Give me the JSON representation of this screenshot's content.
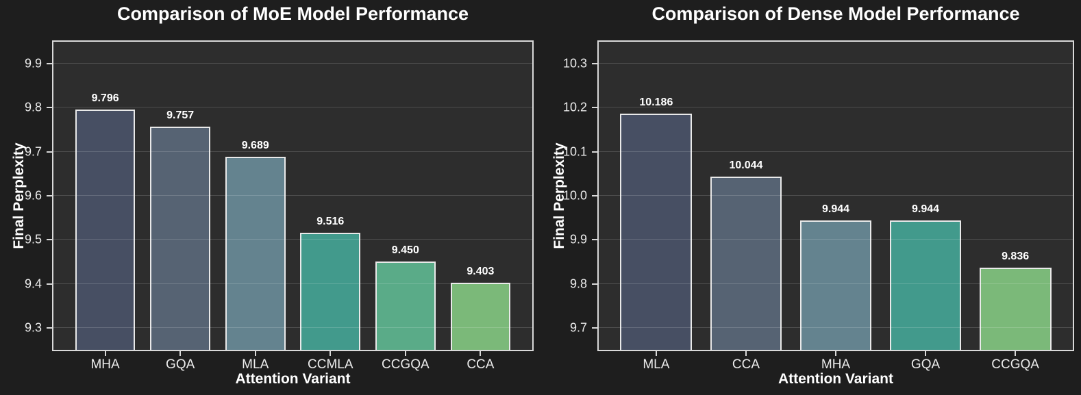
{
  "figure": {
    "background": "#1e1e1e",
    "axes_background": "#2d2d2d",
    "spine_color": "#d9d9d9",
    "bar_edge_color": "#e9e9e9",
    "title_color": "#ffffff",
    "tick_label_color": "#ececec"
  },
  "chart_data": [
    {
      "type": "bar",
      "title": "Comparison of MoE Model Performance",
      "xlabel": "Attention Variant",
      "ylabel": "Final Perplexity",
      "categories": [
        "MHA",
        "GQA",
        "MLA",
        "CCMLA",
        "CCGQA",
        "CCA"
      ],
      "values": [
        9.796,
        9.757,
        9.689,
        9.516,
        9.45,
        9.403
      ],
      "value_labels": [
        "9.796",
        "9.757",
        "9.689",
        "9.516",
        "9.450",
        "9.403"
      ],
      "bar_colors": [
        "#474f63",
        "#566373",
        "#64838f",
        "#429a8c",
        "#5aab88",
        "#7bb979"
      ],
      "yticks": [
        9.3,
        9.4,
        9.5,
        9.6,
        9.7,
        9.8,
        9.9
      ],
      "ytick_labels": [
        "9.3",
        "9.4",
        "9.5",
        "9.6",
        "9.7",
        "9.8",
        "9.9"
      ],
      "ylim": [
        9.25,
        9.95
      ],
      "grid": true,
      "legend": null
    },
    {
      "type": "bar",
      "title": "Comparison of Dense Model Performance",
      "xlabel": "Attention Variant",
      "ylabel": "Final Perplexity",
      "categories": [
        "MLA",
        "CCA",
        "MHA",
        "GQA",
        "CCGQA"
      ],
      "values": [
        10.186,
        10.044,
        9.944,
        9.944,
        9.836
      ],
      "value_labels": [
        "10.186",
        "10.044",
        "9.944",
        "9.944",
        "9.836"
      ],
      "bar_colors": [
        "#474f63",
        "#566373",
        "#64838f",
        "#429a8c",
        "#7bb979"
      ],
      "yticks": [
        9.7,
        9.8,
        9.9,
        10.0,
        10.1,
        10.2,
        10.3
      ],
      "ytick_labels": [
        "9.7",
        "9.8",
        "9.9",
        "10.0",
        "10.1",
        "10.2",
        "10.3"
      ],
      "ylim": [
        9.65,
        10.35
      ],
      "grid": true,
      "legend": null
    }
  ]
}
